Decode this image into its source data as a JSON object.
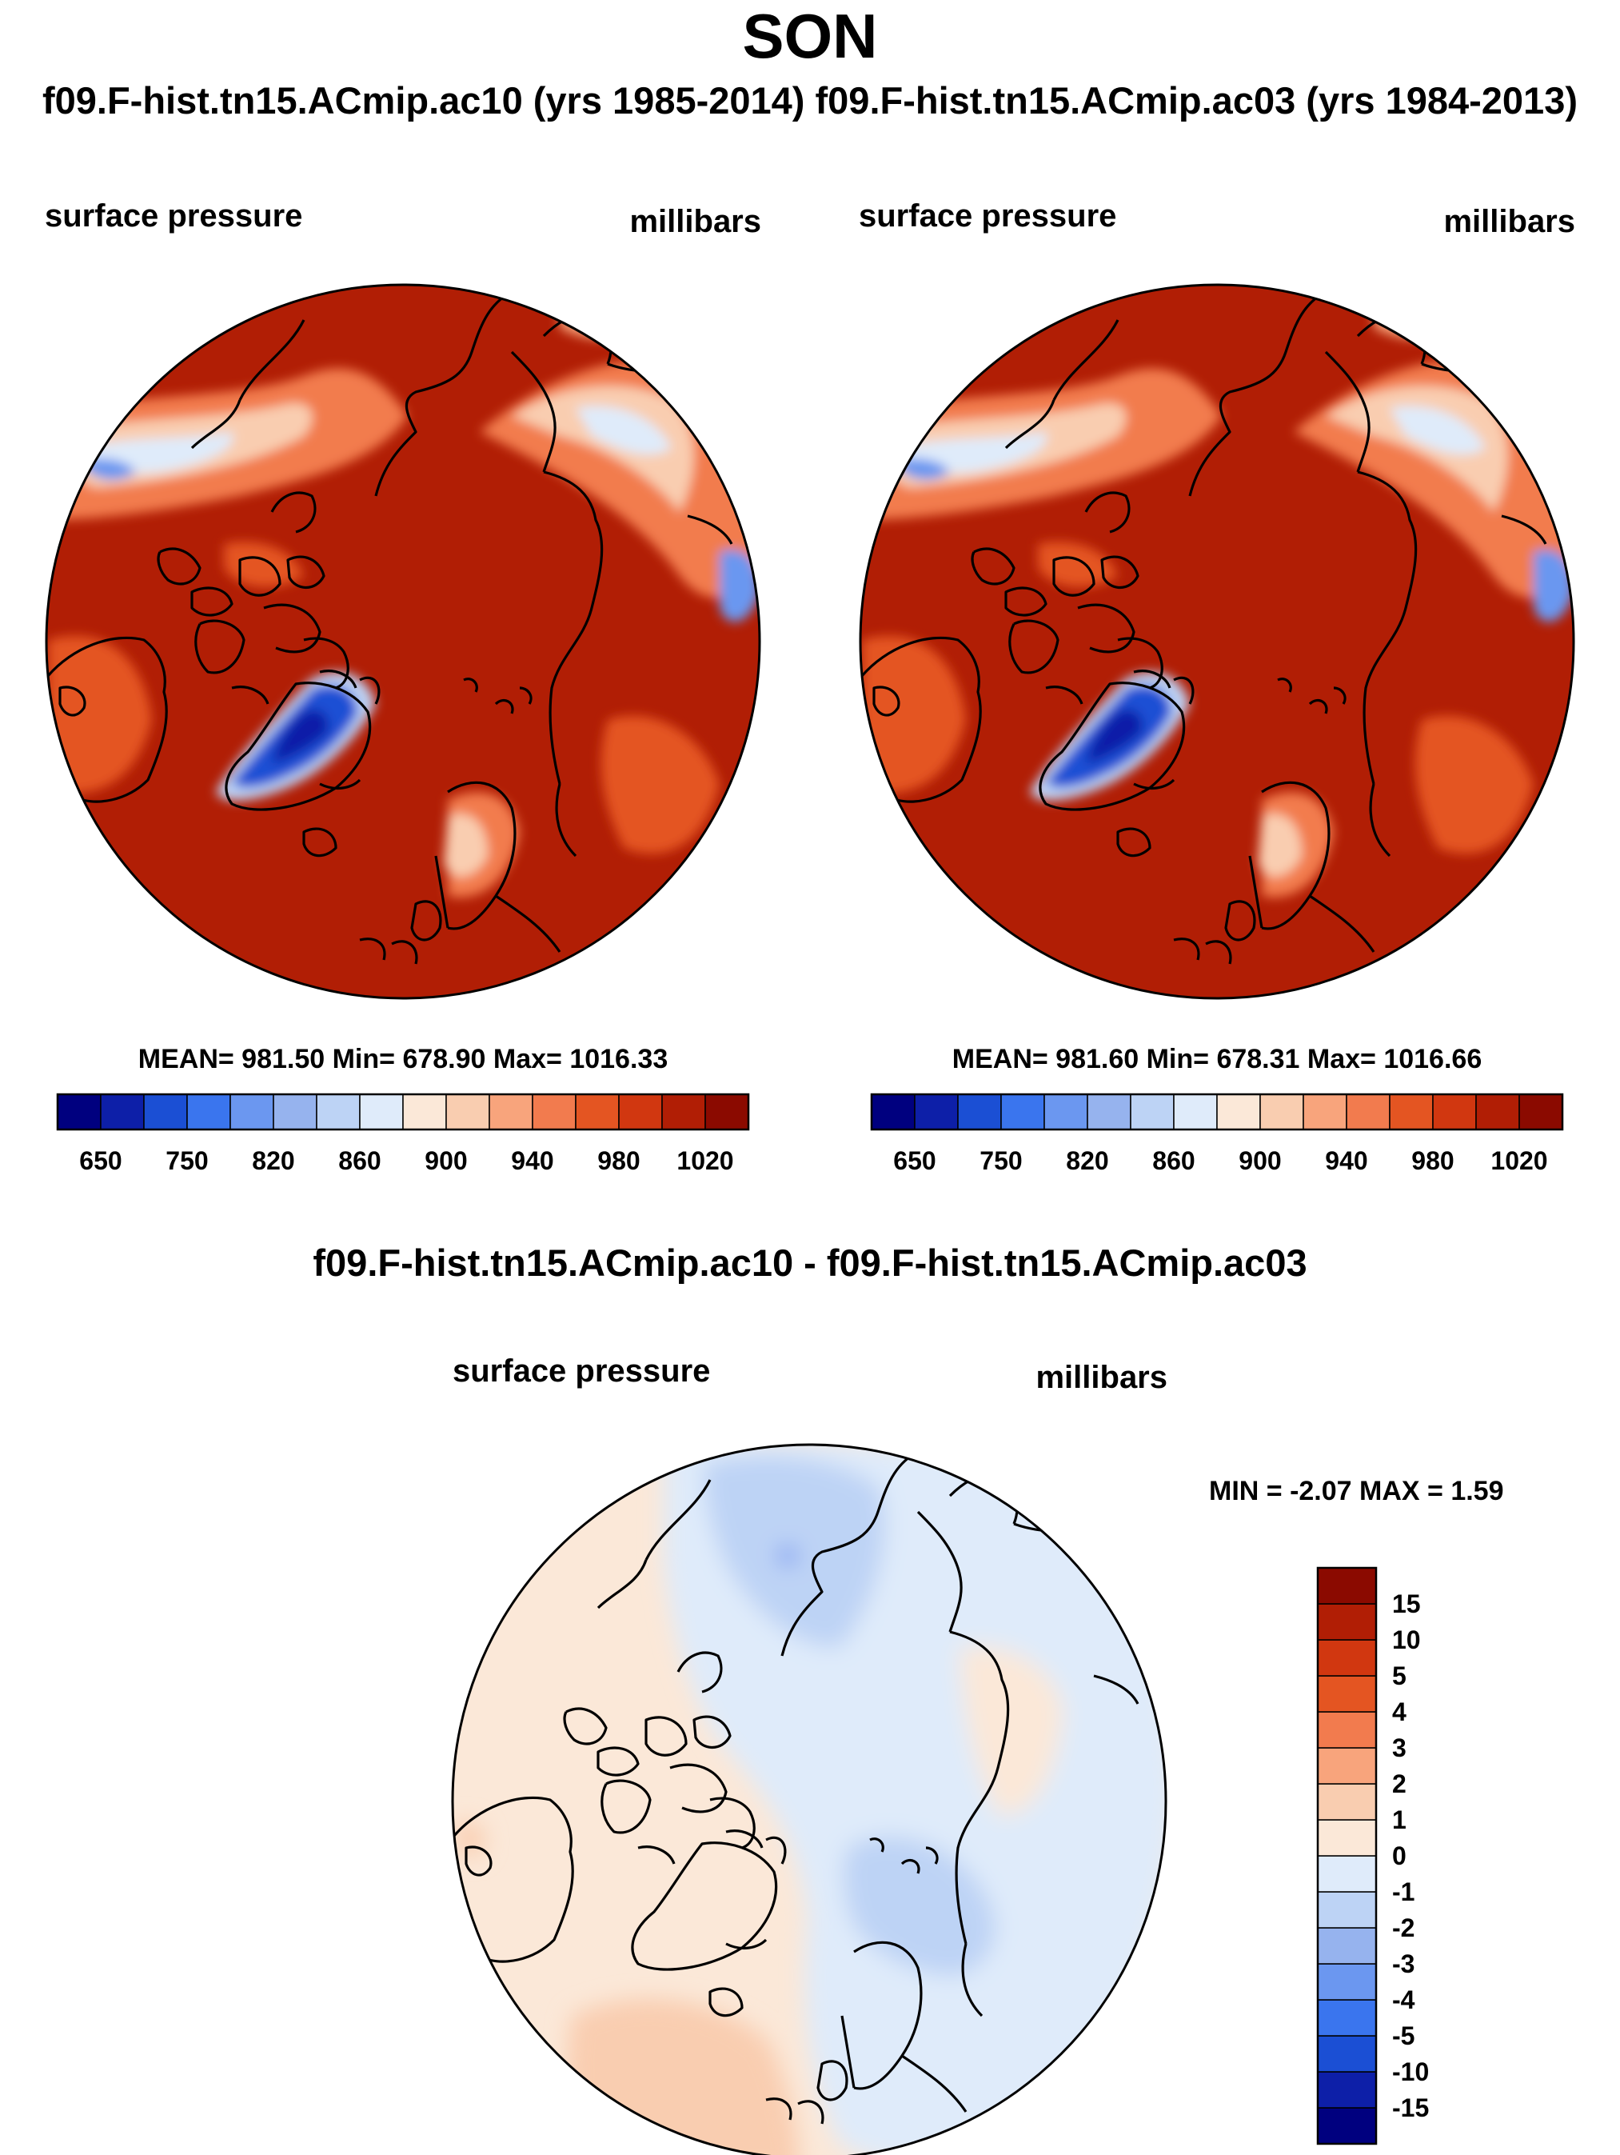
{
  "main_title": "SON",
  "subtitle": "f09.F-hist.tn15.ACmip.ac10 (yrs 1985-2014) f09.F-hist.tn15.ACmip.ac03 (yrs 1984-2013)",
  "diff_title": "f09.F-hist.tn15.ACmip.ac10 - f09.F-hist.tn15.ACmip.ac03",
  "colors": {
    "abs": [
      "#00007f",
      "#0d1fa8",
      "#1b4fd4",
      "#3a75ee",
      "#6b97f0",
      "#96b3ee",
      "#bdd3f5",
      "#dfebfa",
      "#fbe8d8",
      "#f9cdb0",
      "#f8a47c",
      "#f27b4e",
      "#e45522",
      "#d13710",
      "#b11e05",
      "#8b0a00"
    ],
    "diff": [
      "#00007f",
      "#0d1fa8",
      "#1b4fd4",
      "#3a75ee",
      "#6b97f0",
      "#96b3ee",
      "#bdd3f5",
      "#dfebfa",
      "#fbe8d8",
      "#f9cdb0",
      "#f8a47c",
      "#f27b4e",
      "#e45522",
      "#d13710",
      "#b11e05",
      "#8b0a00"
    ]
  },
  "chart_data": [
    {
      "type": "heatmap",
      "projection": "north-polar-stereographic",
      "left_label": "surface pressure",
      "right_label": "millibars",
      "stats": {
        "mean": "981.50",
        "min": "678.90",
        "max": "1016.33"
      },
      "stats_text": "MEAN= 981.50  Min= 678.90  Max= 1016.33",
      "levels": [
        650,
        700,
        750,
        800,
        820,
        840,
        860,
        880,
        900,
        920,
        940,
        960,
        980,
        1000,
        1020
      ],
      "colorbar_tick_labels": [
        "650",
        "750",
        "820",
        "860",
        "900",
        "940",
        "980",
        "1020"
      ],
      "colorbar_orientation": "horizontal"
    },
    {
      "type": "heatmap",
      "projection": "north-polar-stereographic",
      "left_label": "surface pressure",
      "right_label": "millibars",
      "stats": {
        "mean": "981.60",
        "min": "678.31",
        "max": "1016.66"
      },
      "stats_text": "MEAN= 981.60  Min= 678.31  Max= 1016.66",
      "levels": [
        650,
        700,
        750,
        800,
        820,
        840,
        860,
        880,
        900,
        920,
        940,
        960,
        980,
        1000,
        1020
      ],
      "colorbar_tick_labels": [
        "650",
        "750",
        "820",
        "860",
        "900",
        "940",
        "980",
        "1020"
      ],
      "colorbar_orientation": "horizontal"
    },
    {
      "type": "heatmap",
      "projection": "north-polar-stereographic",
      "title": "f09.F-hist.tn15.ACmip.ac10 - f09.F-hist.tn15.ACmip.ac03",
      "left_label": "surface pressure",
      "right_label": "millibars",
      "stats": {
        "min": "-2.07",
        "max": "1.59"
      },
      "stats_text": "MIN =  -2.07 MAX =   1.59",
      "levels": [
        -15,
        -10,
        -5,
        -4,
        -3,
        -2,
        -1,
        0,
        1,
        2,
        3,
        4,
        5,
        10,
        15
      ],
      "colorbar_tick_labels": [
        "15",
        "10",
        "5",
        "4",
        "3",
        "2",
        "1",
        "0",
        "-1",
        "-2",
        "-3",
        "-4",
        "-5",
        "-10",
        "-15"
      ],
      "colorbar_orientation": "vertical"
    }
  ]
}
